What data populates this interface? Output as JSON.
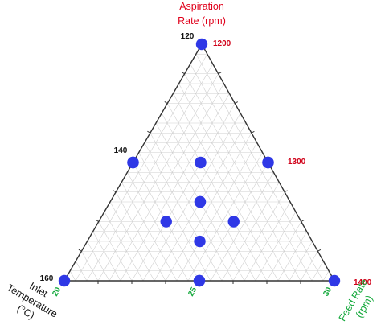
{
  "chart_data": {
    "type": "scatter",
    "subtype": "ternary",
    "grid": true,
    "marker_color": "#2f38e6",
    "axes": {
      "top": {
        "label_lines": [
          "Aspiration",
          "Rate (rpm)"
        ],
        "color": "#e0001b",
        "ticks": [
          "1200",
          "1300",
          "1400"
        ]
      },
      "left": {
        "label_lines": [
          "Inlet",
          "Temperature",
          "(°C)"
        ],
        "color": "#111111",
        "ticks": [
          "120",
          "140",
          "160"
        ]
      },
      "bottom": {
        "label_lines": [
          "Feed Rate",
          "(rpm)"
        ],
        "color": "#12a83a",
        "ticks": [
          "20",
          "25",
          "30"
        ]
      }
    },
    "points": [
      {
        "top": 1,
        "left": 0,
        "right": 0
      },
      {
        "top": 0.5,
        "left": 0.5,
        "right": 0
      },
      {
        "top": 0.5,
        "left": 0,
        "right": 0.5
      },
      {
        "top": 0,
        "left": 1,
        "right": 0
      },
      {
        "top": 0,
        "left": 0.5,
        "right": 0.5
      },
      {
        "top": 0,
        "left": 0,
        "right": 1
      },
      {
        "top": 0,
        "left": 0.5,
        "right": 0.5
      },
      {
        "top": 0.5,
        "left": 0.5,
        "right": 0
      },
      {
        "top": 0.5,
        "left": 0,
        "right": 0.5
      },
      {
        "top": 0.3333,
        "left": 0.3333,
        "right": 0.3333
      },
      {
        "top": 0.3333,
        "left": 0.3333,
        "right": 0.3333
      },
      {
        "top": 0.5,
        "left": 0.25,
        "right": 0.25
      },
      {
        "top": 0.25,
        "left": 0.5,
        "right": 0.25
      },
      {
        "top": 0.25,
        "left": 0.25,
        "right": 0.5
      },
      {
        "top": 0.1667,
        "left": 0.4167,
        "right": 0.4167
      }
    ]
  }
}
